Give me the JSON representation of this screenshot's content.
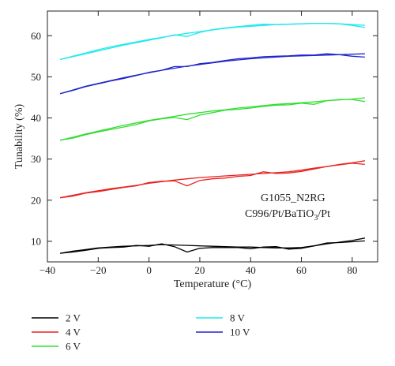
{
  "chart_data": {
    "type": "line",
    "xlabel": "Temperature (°C)",
    "ylabel": "Tunability (%)",
    "xlim": [
      -40,
      90
    ],
    "ylim": [
      5,
      66
    ],
    "xticks": [
      -40,
      -20,
      0,
      20,
      40,
      60,
      80
    ],
    "yticks": [
      10,
      20,
      30,
      40,
      50,
      60
    ],
    "grid": false,
    "legend_position": "bottom",
    "annotation_line1": "G1055_N2RG",
    "annotation_line2_prefix": "C996/Pt/BaTiO",
    "annotation_line2_sub": "3",
    "annotation_line2_suffix": "/Pt",
    "series": [
      {
        "name": "2 V",
        "color": "#000000",
        "curves": [
          {
            "x": [
              -35,
              -30,
              -25,
              -20,
              -15,
              -10,
              -5,
              0,
              5,
              10,
              15,
              20,
              25,
              30,
              35,
              40,
              45,
              50,
              55,
              60,
              65,
              70,
              75,
              80,
              85
            ],
            "y": [
              7.1,
              7.6,
              8.0,
              8.4,
              8.6,
              8.8,
              8.9,
              9.0,
              9.2,
              9.1,
              9.0,
              8.9,
              8.8,
              8.7,
              8.6,
              8.6,
              8.5,
              8.4,
              8.4,
              8.5,
              8.9,
              9.4,
              9.8,
              10.2,
              10.8
            ]
          },
          {
            "x": [
              -35,
              -30,
              -25,
              -20,
              -15,
              -10,
              -5,
              0,
              5,
              10,
              15,
              20,
              25,
              30,
              35,
              40,
              45,
              50,
              55,
              60,
              65,
              70,
              75,
              80,
              85
            ],
            "y": [
              7.1,
              7.4,
              7.8,
              8.3,
              8.5,
              8.6,
              9.0,
              8.8,
              9.4,
              8.7,
              7.4,
              8.3,
              8.5,
              8.5,
              8.5,
              8.2,
              8.6,
              8.7,
              8.1,
              8.3,
              8.9,
              9.6,
              9.7,
              9.9,
              10.1
            ]
          }
        ]
      },
      {
        "name": "4 V",
        "color": "#e8231f",
        "curves": [
          {
            "x": [
              -35,
              -30,
              -25,
              -20,
              -15,
              -10,
              -5,
              0,
              5,
              10,
              15,
              20,
              25,
              30,
              35,
              40,
              45,
              50,
              55,
              60,
              65,
              70,
              75,
              80,
              85
            ],
            "y": [
              20.6,
              21.2,
              21.8,
              22.3,
              22.8,
              23.2,
              23.6,
              24.1,
              24.5,
              24.9,
              25.2,
              25.5,
              25.7,
              25.9,
              26.1,
              26.3,
              26.5,
              26.7,
              26.9,
              27.3,
              27.8,
              28.2,
              28.7,
              29.1,
              29.6
            ]
          },
          {
            "x": [
              -35,
              -30,
              -25,
              -20,
              -15,
              -10,
              -5,
              0,
              5,
              10,
              15,
              20,
              25,
              30,
              35,
              40,
              45,
              50,
              55,
              60,
              65,
              70,
              75,
              80,
              85
            ],
            "y": [
              20.6,
              21.0,
              21.7,
              22.1,
              22.6,
              23.1,
              23.5,
              24.3,
              24.6,
              24.7,
              23.5,
              24.8,
              25.2,
              25.4,
              25.8,
              26.0,
              26.9,
              26.5,
              26.6,
              27.0,
              27.6,
              28.2,
              28.6,
              29.0,
              28.7
            ]
          }
        ]
      },
      {
        "name": "6 V",
        "color": "#33dd33",
        "curves": [
          {
            "x": [
              -35,
              -30,
              -25,
              -20,
              -15,
              -10,
              -5,
              0,
              5,
              10,
              15,
              20,
              25,
              30,
              35,
              40,
              45,
              50,
              55,
              60,
              65,
              70,
              75,
              80,
              85
            ],
            "y": [
              34.6,
              35.3,
              36.1,
              36.8,
              37.5,
              38.2,
              38.8,
              39.4,
              39.9,
              40.4,
              40.9,
              41.3,
              41.7,
              42.0,
              42.4,
              42.7,
              43.0,
              43.3,
              43.5,
              43.7,
              43.9,
              44.2,
              44.4,
              44.6,
              44.9
            ]
          },
          {
            "x": [
              -35,
              -30,
              -25,
              -20,
              -15,
              -10,
              -5,
              0,
              5,
              10,
              15,
              20,
              25,
              30,
              35,
              40,
              45,
              50,
              55,
              60,
              65,
              70,
              75,
              80,
              85
            ],
            "y": [
              34.6,
              35.1,
              35.9,
              36.6,
              37.2,
              37.8,
              38.4,
              39.3,
              39.8,
              40.1,
              39.6,
              40.7,
              41.3,
              41.9,
              42.1,
              42.4,
              42.8,
              43.1,
              43.2,
              43.6,
              43.3,
              44.2,
              44.5,
              44.5,
              44.0
            ]
          }
        ]
      },
      {
        "name": "8 V",
        "color": "#22e8f0",
        "curves": [
          {
            "x": [
              -35,
              -30,
              -25,
              -20,
              -15,
              -10,
              -5,
              0,
              5,
              10,
              15,
              20,
              25,
              30,
              35,
              40,
              45,
              50,
              55,
              60,
              65,
              70,
              75,
              80,
              85
            ],
            "y": [
              54.2,
              55.0,
              55.8,
              56.6,
              57.3,
              57.9,
              58.5,
              59.1,
              59.6,
              60.1,
              60.6,
              61.0,
              61.4,
              61.8,
              62.1,
              62.3,
              62.5,
              62.7,
              62.8,
              62.9,
              63.0,
              63.0,
              62.9,
              62.7,
              62.5
            ]
          },
          {
            "x": [
              -35,
              -30,
              -25,
              -20,
              -15,
              -10,
              -5,
              0,
              5,
              10,
              15,
              20,
              25,
              30,
              35,
              40,
              45,
              50,
              55,
              60,
              65,
              70,
              75,
              80,
              85
            ],
            "y": [
              54.2,
              54.9,
              55.6,
              56.3,
              57.0,
              57.7,
              58.3,
              58.9,
              59.5,
              60.2,
              59.8,
              60.8,
              61.5,
              61.9,
              62.2,
              62.5,
              62.8,
              62.7,
              62.8,
              62.9,
              63.0,
              63.0,
              62.9,
              62.5,
              62.0
            ]
          }
        ]
      },
      {
        "name": "10 V",
        "color": "#2026c8",
        "curves": [
          {
            "x": [
              -35,
              -30,
              -25,
              -20,
              -15,
              -10,
              -5,
              0,
              5,
              10,
              15,
              20,
              25,
              30,
              35,
              40,
              45,
              50,
              55,
              60,
              65,
              70,
              75,
              80,
              85
            ],
            "y": [
              45.9,
              46.8,
              47.7,
              48.4,
              49.1,
              49.8,
              50.4,
              51.0,
              51.6,
              52.1,
              52.6,
              53.0,
              53.4,
              53.8,
              54.1,
              54.4,
              54.6,
              54.8,
              55.0,
              55.1,
              55.2,
              55.3,
              55.4,
              55.5,
              55.6
            ]
          },
          {
            "x": [
              -35,
              -30,
              -25,
              -20,
              -15,
              -10,
              -5,
              0,
              5,
              10,
              15,
              20,
              25,
              30,
              35,
              40,
              45,
              50,
              55,
              60,
              65,
              70,
              75,
              80,
              85
            ],
            "y": [
              45.9,
              46.7,
              47.6,
              48.3,
              49.0,
              49.6,
              50.3,
              51.1,
              51.6,
              52.5,
              52.5,
              53.2,
              53.5,
              54.0,
              54.4,
              54.6,
              54.9,
              55.0,
              55.1,
              55.3,
              55.3,
              55.6,
              55.4,
              55.0,
              54.8
            ]
          }
        ]
      }
    ]
  }
}
